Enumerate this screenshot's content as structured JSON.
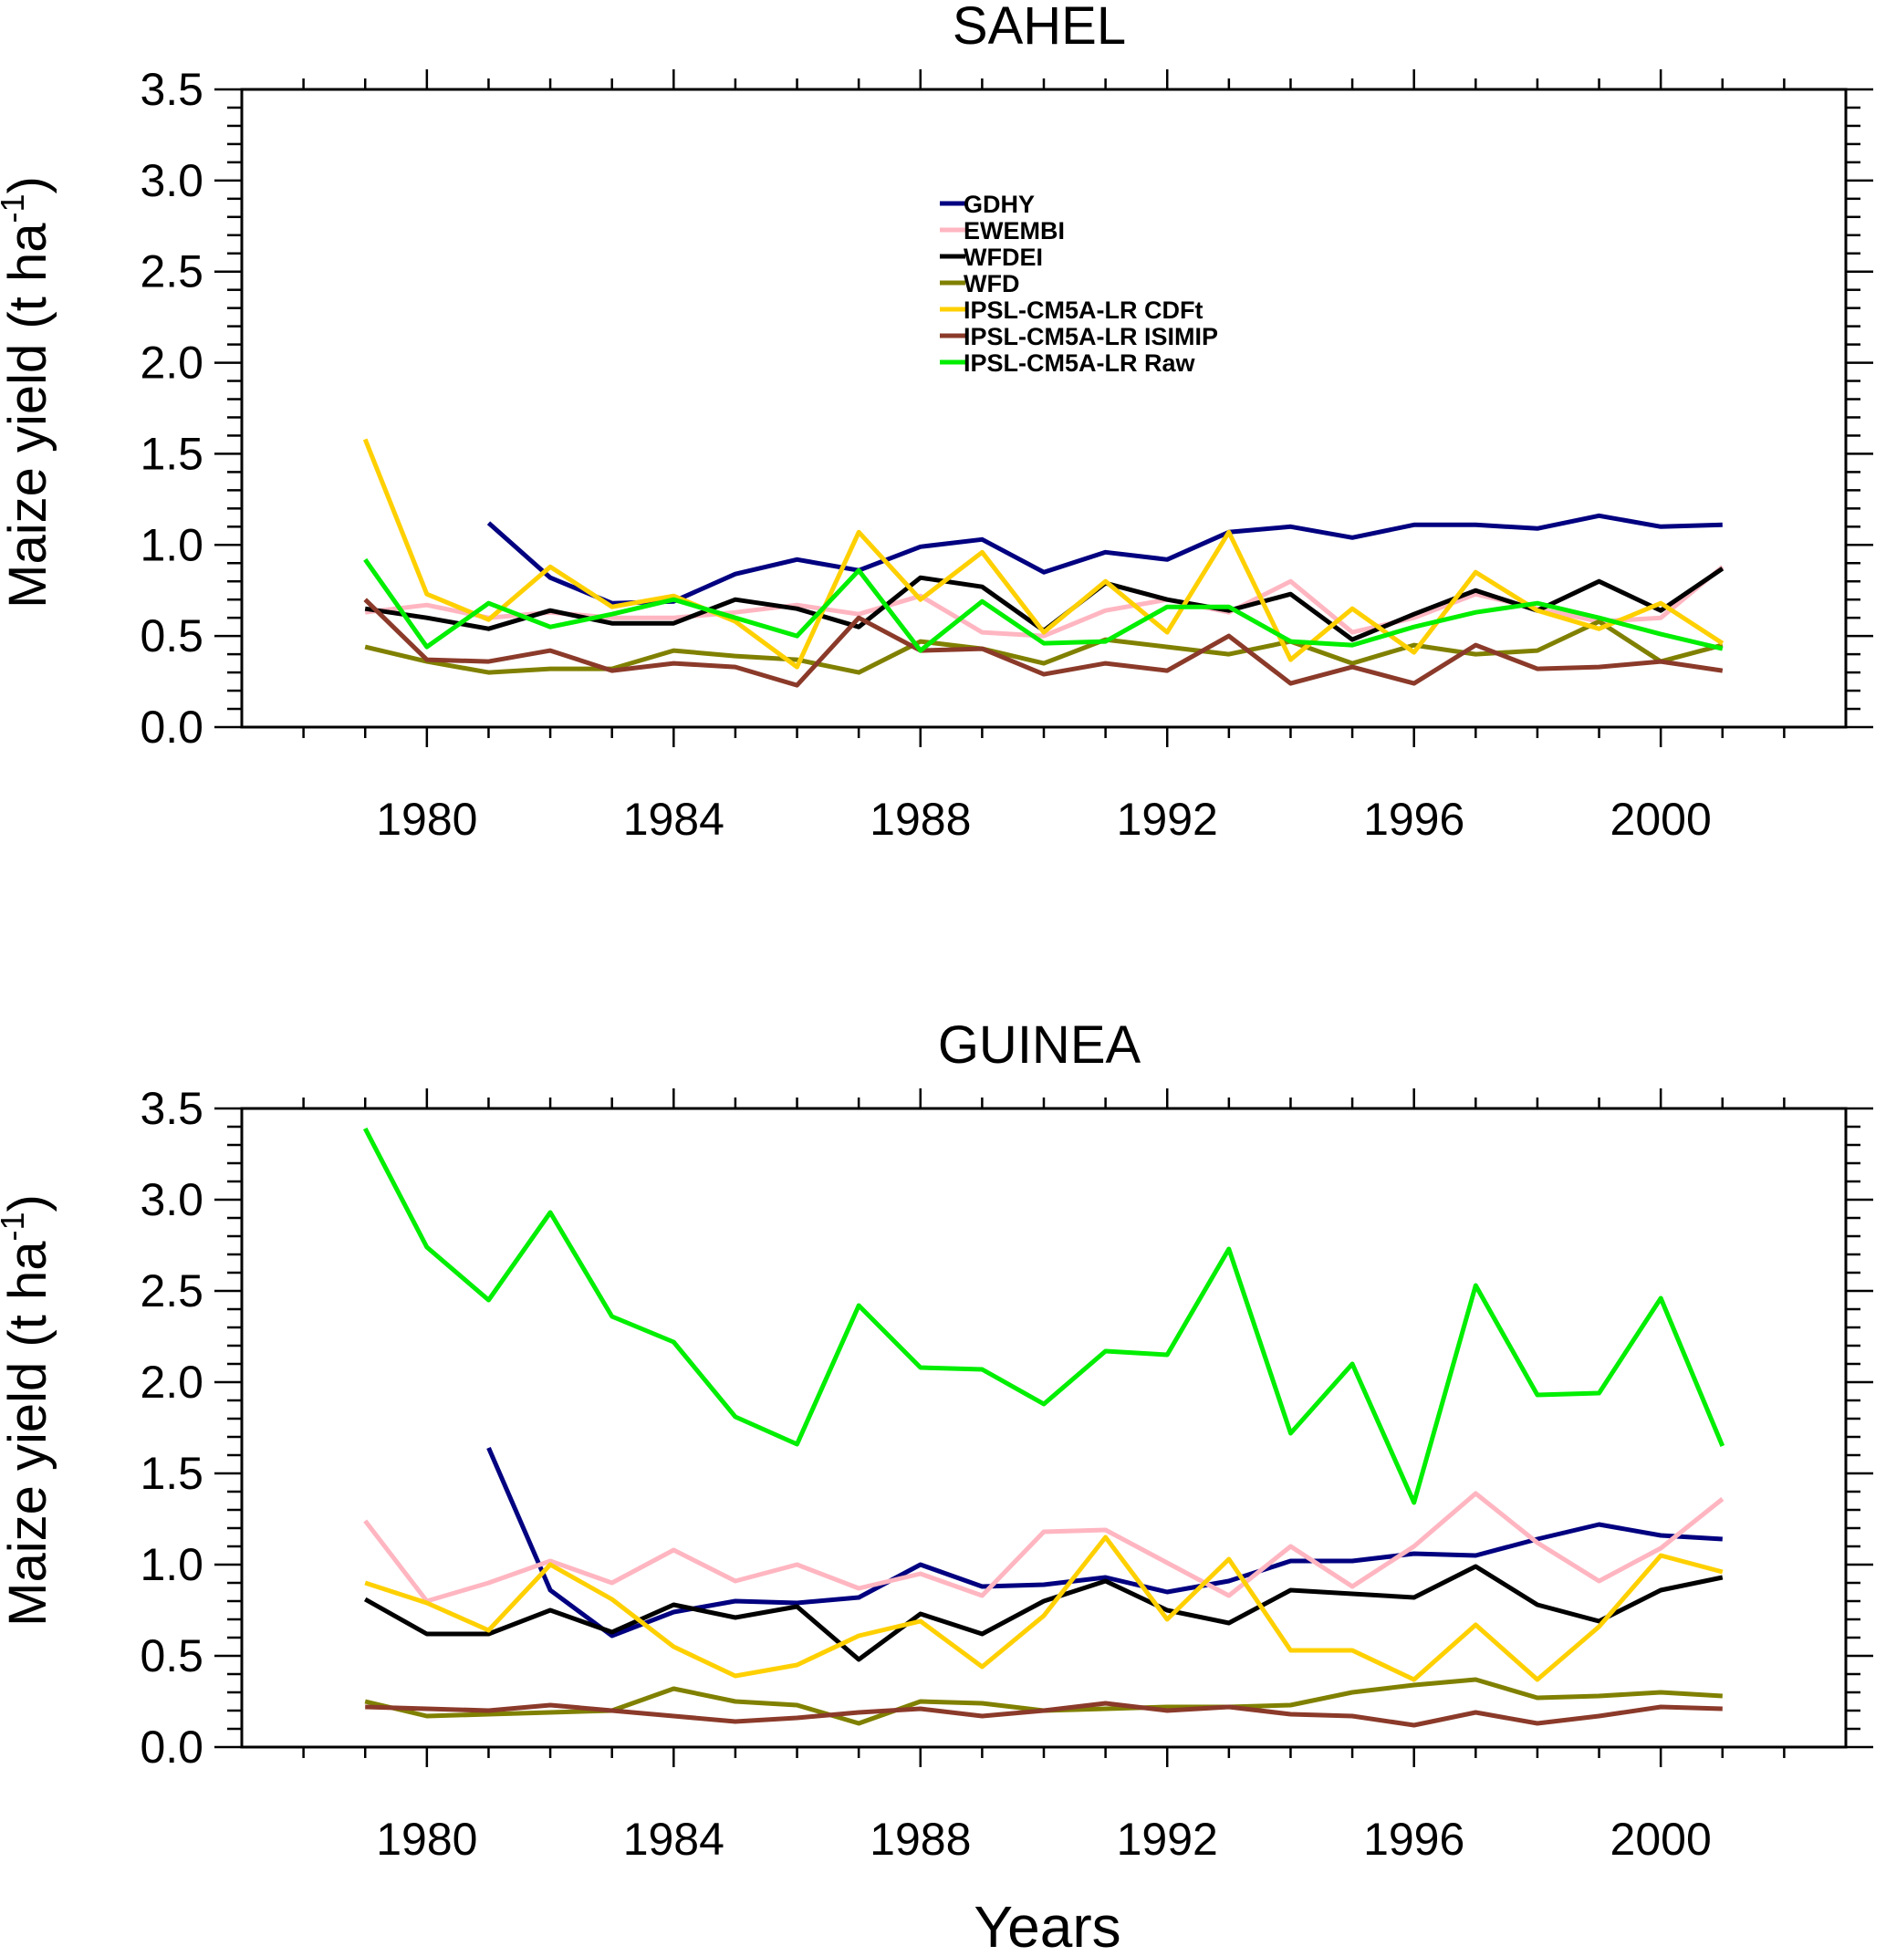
{
  "xlabel": "Years",
  "colors": {
    "GDHY": "#000080",
    "EWEMBI": "#ffb6c1",
    "WFDEI": "#000000",
    "WFD": "#808000",
    "IPSL-CM5A-LR CDFt": "#ffd000",
    "IPSL-CM5A-LR ISIMIP": "#8b3a2a",
    "IPSL-CM5A-LR Raw": "#00ee00"
  },
  "chart_data": [
    {
      "type": "line",
      "title": "SAHEL",
      "ylabel_main": "Maize yield  (t ha",
      "ylabel_sup": "-1",
      "ylabel_close": ")",
      "xlabel": "",
      "xlim": [
        1977,
        2003
      ],
      "ylim": [
        0,
        3.5
      ],
      "xticks": [
        1980,
        1984,
        1988,
        1992,
        1996,
        2000
      ],
      "xtick_labels": [
        "1980",
        "1984",
        "1988",
        "1992",
        "1996",
        "2000"
      ],
      "yticks": [
        0,
        0.5,
        1,
        1.5,
        2,
        2.5,
        3,
        3.5
      ],
      "ytick_labels": [
        "0.0",
        "0.5",
        "1.0",
        "1.5",
        "2.0",
        "2.5",
        "3.0",
        "3.5"
      ],
      "legend_position": "top-center",
      "x": [
        1979,
        1980,
        1981,
        1982,
        1983,
        1984,
        1985,
        1986,
        1987,
        1988,
        1989,
        1990,
        1991,
        1992,
        1993,
        1994,
        1995,
        1996,
        1997,
        1998,
        1999,
        2000,
        2001
      ],
      "series": [
        {
          "name": "GDHY",
          "values": [
            null,
            null,
            1.12,
            0.82,
            0.68,
            0.69,
            0.84,
            0.92,
            0.86,
            0.99,
            1.03,
            0.85,
            0.96,
            0.92,
            1.07,
            1.1,
            1.04,
            1.11,
            1.11,
            1.09,
            1.16,
            1.1,
            1.11
          ]
        },
        {
          "name": "EWEMBI",
          "values": [
            0.63,
            0.67,
            0.6,
            0.63,
            0.6,
            0.6,
            0.63,
            0.67,
            0.62,
            0.72,
            0.52,
            0.5,
            0.64,
            0.7,
            0.63,
            0.8,
            0.52,
            0.6,
            0.73,
            0.65,
            0.58,
            0.6,
            0.88
          ]
        },
        {
          "name": "WFDEI",
          "values": [
            0.65,
            0.6,
            0.54,
            0.64,
            0.57,
            0.57,
            0.7,
            0.65,
            0.55,
            0.82,
            0.77,
            0.53,
            0.79,
            0.7,
            0.64,
            0.73,
            0.48,
            0.62,
            0.75,
            0.64,
            0.8,
            0.64,
            0.87
          ]
        },
        {
          "name": "WFD",
          "values": [
            0.44,
            0.36,
            0.3,
            0.32,
            0.32,
            0.42,
            0.39,
            0.37,
            0.3,
            0.47,
            0.43,
            0.35,
            0.48,
            0.44,
            0.4,
            0.47,
            0.35,
            0.45,
            0.4,
            0.42,
            0.58,
            0.36,
            0.45
          ]
        },
        {
          "name": "IPSL-CM5A-LR CDFt",
          "values": [
            1.58,
            0.73,
            0.59,
            0.88,
            0.66,
            0.72,
            0.58,
            0.33,
            1.07,
            0.7,
            0.96,
            0.52,
            0.8,
            0.52,
            1.07,
            0.37,
            0.65,
            0.41,
            0.85,
            0.64,
            0.54,
            0.68,
            0.46
          ]
        },
        {
          "name": "IPSL-CM5A-LR ISIMIP",
          "values": [
            0.7,
            0.37,
            0.36,
            0.42,
            0.31,
            0.35,
            0.33,
            0.23,
            0.6,
            0.42,
            0.43,
            0.29,
            0.35,
            0.31,
            0.5,
            0.24,
            0.33,
            0.24,
            0.45,
            0.32,
            0.33,
            0.36,
            0.31
          ]
        },
        {
          "name": "IPSL-CM5A-LR Raw",
          "values": [
            0.92,
            0.44,
            0.68,
            0.55,
            0.62,
            0.7,
            0.6,
            0.5,
            0.86,
            0.42,
            0.69,
            0.46,
            0.47,
            0.66,
            0.66,
            0.47,
            0.45,
            0.55,
            0.63,
            0.68,
            0.6,
            0.51,
            0.43
          ]
        }
      ]
    },
    {
      "type": "line",
      "title": "GUINEA",
      "ylabel_main": "Maize yield  (t ha",
      "ylabel_sup": "-1",
      "ylabel_close": ")",
      "xlabel": "Years",
      "xlim": [
        1977,
        2003
      ],
      "ylim": [
        0,
        3.5
      ],
      "xticks": [
        1980,
        1984,
        1988,
        1992,
        1996,
        2000
      ],
      "xtick_labels": [
        "1980",
        "1984",
        "1988",
        "1992",
        "1996",
        "2000"
      ],
      "yticks": [
        0,
        0.5,
        1,
        1.5,
        2,
        2.5,
        3,
        3.5
      ],
      "ytick_labels": [
        "0.0",
        "0.5",
        "1.0",
        "1.5",
        "2.0",
        "2.5",
        "3.0",
        "3.5"
      ],
      "legend_position": "none",
      "x": [
        1979,
        1980,
        1981,
        1982,
        1983,
        1984,
        1985,
        1986,
        1987,
        1988,
        1989,
        1990,
        1991,
        1992,
        1993,
        1994,
        1995,
        1996,
        1997,
        1998,
        1999,
        2000,
        2001
      ],
      "series": [
        {
          "name": "GDHY",
          "values": [
            null,
            null,
            1.64,
            0.86,
            0.61,
            0.74,
            0.8,
            0.79,
            0.82,
            1.0,
            0.88,
            0.89,
            0.93,
            0.85,
            0.91,
            1.02,
            1.02,
            1.06,
            1.05,
            1.14,
            1.22,
            1.16,
            1.14
          ]
        },
        {
          "name": "EWEMBI",
          "values": [
            1.24,
            0.8,
            0.9,
            1.02,
            0.9,
            1.08,
            0.91,
            1.0,
            0.87,
            0.95,
            0.83,
            1.18,
            1.19,
            1.01,
            0.83,
            1.1,
            0.88,
            1.1,
            1.39,
            1.12,
            0.91,
            1.09,
            1.36
          ]
        },
        {
          "name": "WFDEI",
          "values": [
            0.81,
            0.62,
            0.62,
            0.75,
            0.63,
            0.78,
            0.71,
            0.77,
            0.48,
            0.73,
            0.62,
            0.8,
            0.91,
            0.75,
            0.68,
            0.86,
            0.84,
            0.82,
            0.99,
            0.78,
            0.69,
            0.86,
            0.93
          ]
        },
        {
          "name": "WFD",
          "values": [
            0.25,
            0.17,
            0.18,
            0.19,
            0.2,
            0.32,
            0.25,
            0.23,
            0.13,
            0.25,
            0.24,
            0.2,
            0.21,
            0.22,
            0.22,
            0.23,
            0.3,
            0.34,
            0.37,
            0.27,
            0.28,
            0.3,
            0.28
          ]
        },
        {
          "name": "IPSL-CM5A-LR CDFt",
          "values": [
            0.9,
            0.79,
            0.64,
            1.0,
            0.81,
            0.55,
            0.39,
            0.45,
            0.61,
            0.69,
            0.44,
            0.72,
            1.15,
            0.7,
            1.03,
            0.53,
            0.53,
            0.37,
            0.67,
            0.37,
            0.66,
            1.05,
            0.96
          ]
        },
        {
          "name": "IPSL-CM5A-LR ISIMIP",
          "values": [
            0.22,
            0.21,
            0.2,
            0.23,
            0.2,
            0.17,
            0.14,
            0.16,
            0.19,
            0.21,
            0.17,
            0.2,
            0.24,
            0.2,
            0.22,
            0.18,
            0.17,
            0.12,
            0.19,
            0.13,
            0.17,
            0.22,
            0.21
          ]
        },
        {
          "name": "IPSL-CM5A-LR Raw",
          "values": [
            3.39,
            2.74,
            2.45,
            2.93,
            2.36,
            2.22,
            1.81,
            1.66,
            2.42,
            2.08,
            2.07,
            1.88,
            2.17,
            2.15,
            2.73,
            1.72,
            2.1,
            1.34,
            2.53,
            1.93,
            1.94,
            2.46,
            1.65
          ]
        }
      ]
    }
  ]
}
